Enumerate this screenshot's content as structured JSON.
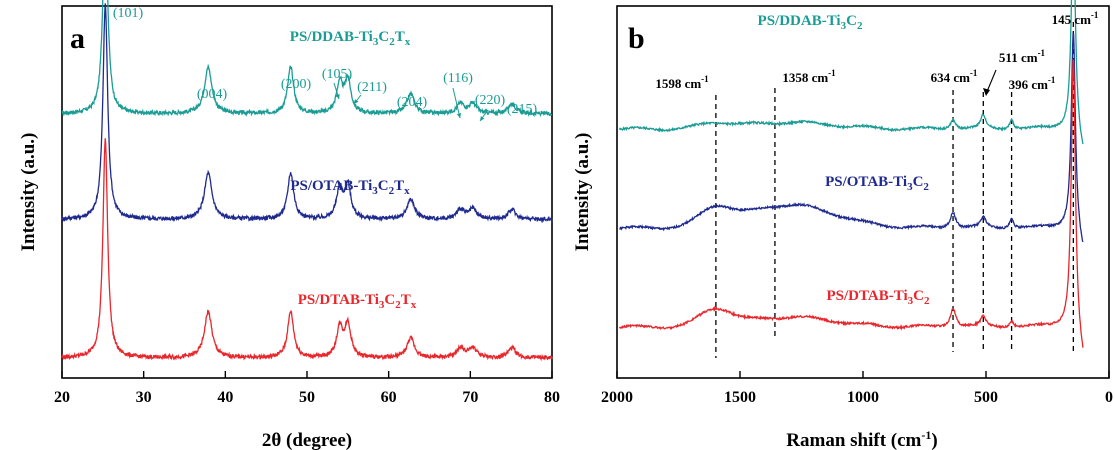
{
  "colors": {
    "ddab": "#1a9c94",
    "otab": "#1f2a8f",
    "dtab": "#e8262b",
    "axis": "#000000"
  },
  "chart_data": [
    {
      "type": "line",
      "panel": "a",
      "xlabel": "2θ (degree)",
      "ylabel": "Intensity (a.u.)",
      "xlim": [
        20,
        80
      ],
      "xticks": [
        20,
        30,
        40,
        50,
        60,
        70,
        80
      ],
      "legend_placement": "inline-labels",
      "peaks_2theta": [
        25.3,
        37.9,
        48.0,
        54.0,
        55.0,
        62.7,
        68.8,
        70.3,
        75.1
      ],
      "peak_labels": [
        {
          "text": "(101)",
          "x": 25.3
        },
        {
          "text": "(004)",
          "x": 37.9
        },
        {
          "text": "(200)",
          "x": 48.0
        },
        {
          "text": "(105)",
          "x": 54.0
        },
        {
          "text": "(211)",
          "x": 55.0
        },
        {
          "text": "(204)",
          "x": 62.7
        },
        {
          "text": "(116)",
          "x": 68.8
        },
        {
          "text": "(220)",
          "x": 70.3
        },
        {
          "text": "(215)",
          "x": 75.1
        }
      ],
      "series": [
        {
          "label_main": "PS/DDAB-Ti",
          "label_parts": [
            "3",
            "C",
            "2",
            "T",
            "x"
          ],
          "color": "#1a9c94",
          "baseline": 0.74,
          "peak_heights": [
            0.62,
            0.14,
            0.14,
            0.09,
            0.1,
            0.06,
            0.03,
            0.03,
            0.03
          ]
        },
        {
          "label_main": "PS/OTAB-Ti",
          "label_parts": [
            "3",
            "C",
            "2",
            "T",
            "x"
          ],
          "color": "#1f2a8f",
          "baseline": 0.42,
          "peak_heights": [
            0.65,
            0.14,
            0.14,
            0.09,
            0.1,
            0.06,
            0.03,
            0.03,
            0.03
          ]
        },
        {
          "label_main": "PS/DTAB-Ti",
          "label_parts": [
            "3",
            "C",
            "2",
            "T",
            "x"
          ],
          "color": "#e8262b",
          "baseline": 0.0,
          "peak_heights": [
            0.66,
            0.14,
            0.14,
            0.09,
            0.1,
            0.06,
            0.03,
            0.03,
            0.03
          ]
        }
      ]
    },
    {
      "type": "line",
      "panel": "b",
      "xlabel": "Raman shift (cm",
      "xlabel_sup": "-1",
      "xlabel_end": ")",
      "ylabel": "Intensity (a.u.)",
      "xlim": [
        2000,
        0
      ],
      "xticks": [
        2000,
        1500,
        1000,
        500,
        0
      ],
      "legend_placement": "inline-labels",
      "marked_peaks": [
        {
          "value": 1598,
          "text": "1598 cm",
          "sup": "-1"
        },
        {
          "value": 1358,
          "text": "1358 cm",
          "sup": "-1"
        },
        {
          "value": 634,
          "text": "634 cm",
          "sup": "-1"
        },
        {
          "value": 511,
          "text": "511 cm",
          "sup": "-1"
        },
        {
          "value": 396,
          "text": "396 cm",
          "sup": "-1"
        },
        {
          "value": 145,
          "text": "145 cm",
          "sup": "-1"
        }
      ],
      "series": [
        {
          "label_main": "PS/DDAB-Ti",
          "label_parts": [
            "3",
            "C",
            "2"
          ],
          "color": "#1a9c94",
          "baseline": 0.7,
          "broad_heights": [
            0.015,
            0.02
          ],
          "peak_heights": [
            0.03,
            0.04,
            0.03,
            0.62
          ]
        },
        {
          "label_main": "PS/OTAB-Ti",
          "label_parts": [
            "3",
            "C",
            "2"
          ],
          "color": "#1f2a8f",
          "baseline": 0.4,
          "broad_heights": [
            0.05,
            0.07
          ],
          "peak_heights": [
            0.05,
            0.03,
            0.03,
            0.6
          ]
        },
        {
          "label_main": "PS/DTAB-Ti",
          "label_parts": [
            "3",
            "C",
            "2"
          ],
          "color": "#e8262b",
          "baseline": 0.1,
          "broad_heights": [
            0.05,
            0.03
          ],
          "peak_heights": [
            0.06,
            0.03,
            0.02,
            0.82
          ]
        }
      ]
    }
  ]
}
